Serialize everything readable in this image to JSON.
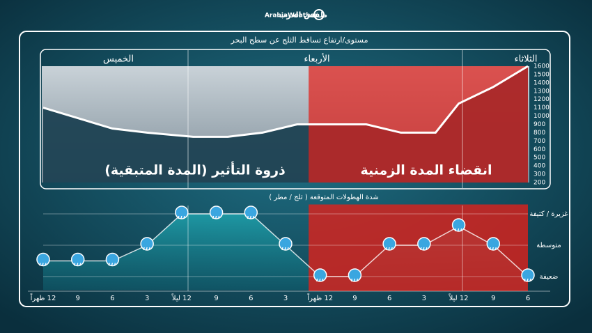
{
  "header": {
    "brand_ar": "طقس العرب",
    "brand_en": "ArabiaWeather"
  },
  "chart_data": [
    {
      "type": "line",
      "title": "مستوى/ارتفاع تساقط الثلج عن سطح البحر",
      "day_labels": [
        "الثلاثاء",
        "الأربعاء",
        "الخميس"
      ],
      "annotations": [
        "ذروة التأثير (المدة المتبقية)",
        "انقضاء المدة الزمنية"
      ],
      "highlight": {
        "from": 0,
        "to": 19,
        "color": "#e0201a"
      },
      "x": [
        0,
        3,
        6,
        8,
        11,
        14,
        17,
        20,
        23,
        26,
        29,
        33,
        36,
        42
      ],
      "values": [
        1600,
        1350,
        1150,
        800,
        800,
        900,
        900,
        900,
        800,
        750,
        750,
        800,
        850,
        1100
      ],
      "color": "#ffffff",
      "xlim": [
        42,
        0
      ],
      "ylim": [
        200,
        1600
      ],
      "yticks": [
        200,
        300,
        400,
        500,
        600,
        700,
        800,
        900,
        1000,
        1100,
        1200,
        1300,
        1400,
        1500,
        1600
      ]
    },
    {
      "type": "line",
      "title": "شدة الهطولات المتوقعة ( ثلج / مطر )",
      "highlight": {
        "from": 0,
        "to": 19,
        "color": "#e0201a"
      },
      "x": [
        0,
        3,
        6,
        9,
        12,
        15,
        18,
        21,
        24,
        27,
        30,
        33,
        36,
        39,
        42
      ],
      "values": [
        1,
        2,
        2.6,
        2,
        2,
        1,
        1,
        2,
        3,
        3,
        3,
        2,
        1.5,
        1.5,
        1.5
      ],
      "color": "#7fe3e8",
      "xlim": [
        42,
        0
      ],
      "ylim": [
        0.7,
        3.3
      ],
      "yticks": [
        {
          "value": 1,
          "label": "ضعيفة"
        },
        {
          "value": 2,
          "label": "متوسطة"
        },
        {
          "value": 3,
          "label": "غزيرة / كثيفة"
        }
      ],
      "grid": true,
      "xticks": [
        {
          "value": 0,
          "label": "6"
        },
        {
          "value": 3,
          "label": "9"
        },
        {
          "value": 6,
          "label": "12 ليلاً"
        },
        {
          "value": 9,
          "label": "3"
        },
        {
          "value": 12,
          "label": "6"
        },
        {
          "value": 15,
          "label": "9"
        },
        {
          "value": 18,
          "label": "12 ظهراً"
        },
        {
          "value": 21,
          "label": "3"
        },
        {
          "value": 24,
          "label": "6"
        },
        {
          "value": 27,
          "label": "9"
        },
        {
          "value": 30,
          "label": "12 ليلاً"
        },
        {
          "value": 33,
          "label": "3"
        },
        {
          "value": 36,
          "label": "6"
        },
        {
          "value": 39,
          "label": "9"
        },
        {
          "value": 42,
          "label": "12 ظهراً"
        }
      ]
    }
  ]
}
